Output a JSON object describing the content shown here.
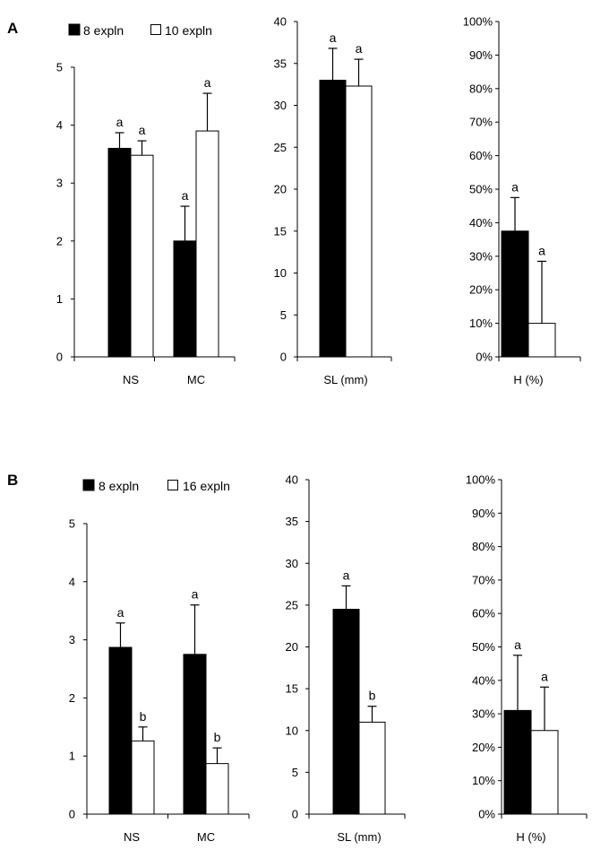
{
  "colors": {
    "series_a": "#000000",
    "series_b": "#ffffff",
    "axis": "#000000",
    "background": "#ffffff"
  },
  "panels": [
    {
      "letter": "A",
      "legend": [
        "8 expln",
        "10 expln"
      ]
    },
    {
      "letter": "B",
      "legend": [
        "8 expln",
        "16 expln"
      ]
    }
  ],
  "chart_data": [
    {
      "panel": "A",
      "type": "bar",
      "title": "",
      "xlabel": "",
      "ylabel": "",
      "ylim": [
        0,
        5
      ],
      "yticks": [
        "0",
        "1",
        "2",
        "3",
        "4",
        "5"
      ],
      "categories": [
        "NS",
        "MC"
      ],
      "series": [
        {
          "name": "8 expln",
          "values": [
            3.6,
            2.0
          ],
          "errors": [
            0.27,
            0.6
          ],
          "sig": [
            "a",
            "a"
          ]
        },
        {
          "name": "10 expln",
          "values": [
            3.48,
            3.9
          ],
          "errors": [
            0.25,
            0.65
          ],
          "sig": [
            "a",
            "a"
          ]
        }
      ]
    },
    {
      "panel": "A",
      "type": "bar",
      "title": "",
      "xlabel": "",
      "ylabel": "",
      "ylim": [
        0,
        40
      ],
      "yticks": [
        "0",
        "5",
        "10",
        "15",
        "20",
        "25",
        "30",
        "35",
        "40"
      ],
      "categories": [
        "SL (mm)"
      ],
      "series": [
        {
          "name": "8 expln",
          "values": [
            33.0
          ],
          "errors": [
            3.8
          ],
          "sig": [
            "a"
          ]
        },
        {
          "name": "10 expln",
          "values": [
            32.3
          ],
          "errors": [
            3.2
          ],
          "sig": [
            "a"
          ]
        }
      ]
    },
    {
      "panel": "A",
      "type": "bar",
      "title": "",
      "xlabel": "",
      "ylabel": "",
      "ylim": [
        0,
        100
      ],
      "yticks": [
        "0%",
        "10%",
        "20%",
        "30%",
        "40%",
        "50%",
        "60%",
        "70%",
        "80%",
        "90%",
        "100%"
      ],
      "categories": [
        "H (%)"
      ],
      "series": [
        {
          "name": "8 expln",
          "values": [
            37.5
          ],
          "errors": [
            10
          ],
          "sig": [
            "a"
          ]
        },
        {
          "name": "10 expln",
          "values": [
            10
          ],
          "errors": [
            18.5
          ],
          "sig": [
            "a"
          ]
        }
      ]
    },
    {
      "panel": "B",
      "type": "bar",
      "title": "",
      "xlabel": "",
      "ylabel": "",
      "ylim": [
        0,
        5
      ],
      "yticks": [
        "0",
        "1",
        "2",
        "3",
        "4",
        "5"
      ],
      "categories": [
        "NS",
        "MC"
      ],
      "series": [
        {
          "name": "8 expln",
          "values": [
            2.87,
            2.75
          ],
          "errors": [
            0.42,
            0.85
          ],
          "sig": [
            "a",
            "a"
          ]
        },
        {
          "name": "16 expln",
          "values": [
            1.26,
            0.87
          ],
          "errors": [
            0.24,
            0.27
          ],
          "sig": [
            "b",
            "b"
          ]
        }
      ]
    },
    {
      "panel": "B",
      "type": "bar",
      "title": "",
      "xlabel": "",
      "ylabel": "",
      "ylim": [
        0,
        40
      ],
      "yticks": [
        "0",
        "5",
        "10",
        "15",
        "20",
        "25",
        "30",
        "35",
        "40"
      ],
      "categories": [
        "SL (mm)"
      ],
      "series": [
        {
          "name": "8 expln",
          "values": [
            24.5
          ],
          "errors": [
            2.8
          ],
          "sig": [
            "a"
          ]
        },
        {
          "name": "16 expln",
          "values": [
            11.0
          ],
          "errors": [
            1.9
          ],
          "sig": [
            "b"
          ]
        }
      ]
    },
    {
      "panel": "B",
      "type": "bar",
      "title": "",
      "xlabel": "",
      "ylabel": "",
      "ylim": [
        0,
        100
      ],
      "yticks": [
        "0%",
        "10%",
        "20%",
        "30%",
        "40%",
        "50%",
        "60%",
        "70%",
        "80%",
        "90%",
        "100%"
      ],
      "categories": [
        "H (%)"
      ],
      "series": [
        {
          "name": "8 expln",
          "values": [
            31
          ],
          "errors": [
            16.5
          ],
          "sig": [
            "a"
          ]
        },
        {
          "name": "16 expln",
          "values": [
            25
          ],
          "errors": [
            13
          ],
          "sig": [
            "a"
          ]
        }
      ]
    }
  ]
}
